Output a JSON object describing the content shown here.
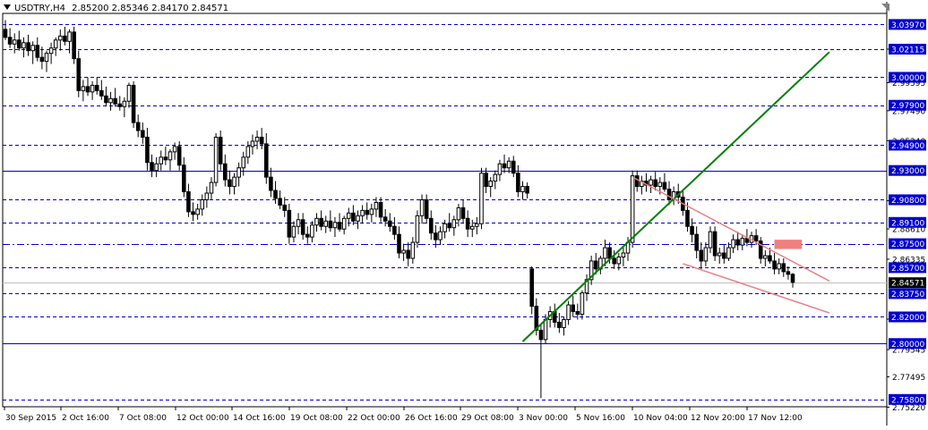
{
  "header": {
    "symbol": "USDTRY,H4",
    "ohlc": "2.85200 2.85346 2.84170 2.84571"
  },
  "colors": {
    "background": "#ffffff",
    "grid_line": "#0000cc",
    "candle": "#000000",
    "support_trendline": "#008000",
    "wedge_lines": "#e87f84",
    "marker_box": "#f08080",
    "price_label_bg": "#0000cc",
    "current_price_bg": "#000000"
  },
  "chart_data": {
    "type": "candlestick",
    "symbol": "USDTRY",
    "timeframe": "H4",
    "ylim": [
      2.7525,
      3.048
    ],
    "x_tick_labels": [
      "30 Sep 2015",
      "2 Oct 16:00",
      "7 Oct 08:00",
      "12 Oct 00:00",
      "14 Oct 16:00",
      "19 Oct 08:00",
      "22 Oct 00:00",
      "26 Oct 16:00",
      "29 Oct 08:00",
      "3 Nov 00:00",
      "5 Nov 16:00",
      "10 Nov 04:00",
      "12 Nov 20:00",
      "17 Nov 12:00"
    ],
    "y_tick_labels": [
      "3.02115",
      "2.99595",
      "2.97490",
      "2.95240",
      "2.90735",
      "2.88610",
      "2.86335",
      "2.81830",
      "2.79545",
      "2.77495",
      "2.75220"
    ],
    "horizontal_levels": [
      {
        "label": "3.03970",
        "value": 3.0397,
        "style": "dashed"
      },
      {
        "label": "3.02115",
        "value": 3.02115,
        "style": "dashed"
      },
      {
        "label": "3.00000",
        "value": 3.0,
        "style": "dashed"
      },
      {
        "label": "2.97900",
        "value": 2.979,
        "style": "dashed"
      },
      {
        "label": "2.94900",
        "value": 2.949,
        "style": "dashed"
      },
      {
        "label": "2.93000",
        "value": 2.93,
        "style": "solid"
      },
      {
        "label": "2.90800",
        "value": 2.908,
        "style": "dashed"
      },
      {
        "label": "2.89100",
        "value": 2.891,
        "style": "dashed"
      },
      {
        "label": "2.87500",
        "value": 2.875,
        "style": "dashdot"
      },
      {
        "label": "2.85700",
        "value": 2.857,
        "style": "dashed"
      },
      {
        "label": "2.83750",
        "value": 2.8375,
        "style": "dashed"
      },
      {
        "label": "2.82000",
        "value": 2.82,
        "style": "dashed"
      },
      {
        "label": "2.80000",
        "value": 2.8,
        "style": "solid"
      },
      {
        "label": "2.75800",
        "value": 2.758,
        "style": "dashed"
      }
    ],
    "current_price": {
      "label": "2.84571",
      "value": 2.84571
    },
    "candles": [
      {
        "o": 3.036,
        "h": 3.043,
        "l": 3.028,
        "c": 3.03
      },
      {
        "o": 3.03,
        "h": 3.037,
        "l": 3.022,
        "c": 3.025
      },
      {
        "o": 3.025,
        "h": 3.033,
        "l": 3.018,
        "c": 3.028
      },
      {
        "o": 3.028,
        "h": 3.035,
        "l": 3.02,
        "c": 3.022
      },
      {
        "o": 3.022,
        "h": 3.03,
        "l": 3.015,
        "c": 3.026
      },
      {
        "o": 3.026,
        "h": 3.032,
        "l": 3.016,
        "c": 3.02
      },
      {
        "o": 3.02,
        "h": 3.027,
        "l": 3.01,
        "c": 3.024
      },
      {
        "o": 3.024,
        "h": 3.03,
        "l": 3.012,
        "c": 3.015
      },
      {
        "o": 3.015,
        "h": 3.023,
        "l": 3.006,
        "c": 3.012
      },
      {
        "o": 3.012,
        "h": 3.02,
        "l": 3.004,
        "c": 3.018
      },
      {
        "o": 3.018,
        "h": 3.026,
        "l": 3.01,
        "c": 3.022
      },
      {
        "o": 3.022,
        "h": 3.03,
        "l": 3.016,
        "c": 3.028
      },
      {
        "o": 3.028,
        "h": 3.036,
        "l": 3.02,
        "c": 3.031
      },
      {
        "o": 3.031,
        "h": 3.038,
        "l": 3.024,
        "c": 3.027
      },
      {
        "o": 3.027,
        "h": 3.036,
        "l": 3.018,
        "c": 3.034
      },
      {
        "o": 3.034,
        "h": 3.038,
        "l": 3.01,
        "c": 3.014
      },
      {
        "o": 3.014,
        "h": 3.02,
        "l": 2.985,
        "c": 2.99
      },
      {
        "o": 2.99,
        "h": 2.998,
        "l": 2.982,
        "c": 2.993
      },
      {
        "o": 2.993,
        "h": 3.0,
        "l": 2.986,
        "c": 2.989
      },
      {
        "o": 2.989,
        "h": 2.997,
        "l": 2.983,
        "c": 2.994
      },
      {
        "o": 2.994,
        "h": 3.0,
        "l": 2.987,
        "c": 2.99
      },
      {
        "o": 2.99,
        "h": 2.998,
        "l": 2.983,
        "c": 2.986
      },
      {
        "o": 2.986,
        "h": 2.993,
        "l": 2.978,
        "c": 2.981
      },
      {
        "o": 2.981,
        "h": 2.989,
        "l": 2.975,
        "c": 2.984
      },
      {
        "o": 2.984,
        "h": 2.992,
        "l": 2.978,
        "c": 2.98
      },
      {
        "o": 2.98,
        "h": 2.986,
        "l": 2.975,
        "c": 2.978
      },
      {
        "o": 2.978,
        "h": 2.985,
        "l": 2.97,
        "c": 2.982
      },
      {
        "o": 2.982,
        "h": 2.996,
        "l": 2.977,
        "c": 2.994
      },
      {
        "o": 2.994,
        "h": 2.997,
        "l": 2.962,
        "c": 2.966
      },
      {
        "o": 2.966,
        "h": 2.972,
        "l": 2.955,
        "c": 2.96
      },
      {
        "o": 2.96,
        "h": 2.966,
        "l": 2.95,
        "c": 2.955
      },
      {
        "o": 2.955,
        "h": 2.962,
        "l": 2.93,
        "c": 2.936
      },
      {
        "o": 2.936,
        "h": 2.942,
        "l": 2.925,
        "c": 2.93
      },
      {
        "o": 2.93,
        "h": 2.94,
        "l": 2.925,
        "c": 2.935
      },
      {
        "o": 2.935,
        "h": 2.945,
        "l": 2.93,
        "c": 2.94
      },
      {
        "o": 2.94,
        "h": 2.948,
        "l": 2.934,
        "c": 2.938
      },
      {
        "o": 2.938,
        "h": 2.946,
        "l": 2.93,
        "c": 2.944
      },
      {
        "o": 2.944,
        "h": 2.951,
        "l": 2.938,
        "c": 2.948
      },
      {
        "o": 2.948,
        "h": 2.952,
        "l": 2.93,
        "c": 2.934
      },
      {
        "o": 2.934,
        "h": 2.94,
        "l": 2.91,
        "c": 2.914
      },
      {
        "o": 2.914,
        "h": 2.92,
        "l": 2.895,
        "c": 2.899
      },
      {
        "o": 2.899,
        "h": 2.906,
        "l": 2.892,
        "c": 2.897
      },
      {
        "o": 2.897,
        "h": 2.905,
        "l": 2.893,
        "c": 2.901
      },
      {
        "o": 2.901,
        "h": 2.912,
        "l": 2.896,
        "c": 2.908
      },
      {
        "o": 2.908,
        "h": 2.918,
        "l": 2.902,
        "c": 2.913
      },
      {
        "o": 2.913,
        "h": 2.925,
        "l": 2.908,
        "c": 2.921
      },
      {
        "o": 2.921,
        "h": 2.958,
        "l": 2.918,
        "c": 2.955
      },
      {
        "o": 2.955,
        "h": 2.96,
        "l": 2.93,
        "c": 2.935
      },
      {
        "o": 2.935,
        "h": 2.942,
        "l": 2.918,
        "c": 2.923
      },
      {
        "o": 2.923,
        "h": 2.93,
        "l": 2.912,
        "c": 2.918
      },
      {
        "o": 2.918,
        "h": 2.928,
        "l": 2.912,
        "c": 2.925
      },
      {
        "o": 2.925,
        "h": 2.936,
        "l": 2.918,
        "c": 2.932
      },
      {
        "o": 2.932,
        "h": 2.944,
        "l": 2.926,
        "c": 2.94
      },
      {
        "o": 2.94,
        "h": 2.952,
        "l": 2.935,
        "c": 2.948
      },
      {
        "o": 2.948,
        "h": 2.957,
        "l": 2.942,
        "c": 2.952
      },
      {
        "o": 2.952,
        "h": 2.96,
        "l": 2.946,
        "c": 2.955
      },
      {
        "o": 2.955,
        "h": 2.962,
        "l": 2.946,
        "c": 2.95
      },
      {
        "o": 2.95,
        "h": 2.958,
        "l": 2.92,
        "c": 2.925
      },
      {
        "o": 2.925,
        "h": 2.932,
        "l": 2.91,
        "c": 2.915
      },
      {
        "o": 2.915,
        "h": 2.922,
        "l": 2.905,
        "c": 2.909
      },
      {
        "o": 2.909,
        "h": 2.915,
        "l": 2.901,
        "c": 2.904
      },
      {
        "o": 2.904,
        "h": 2.91,
        "l": 2.895,
        "c": 2.9
      },
      {
        "o": 2.9,
        "h": 2.905,
        "l": 2.875,
        "c": 2.88
      },
      {
        "o": 2.88,
        "h": 2.892,
        "l": 2.876,
        "c": 2.888
      },
      {
        "o": 2.888,
        "h": 2.898,
        "l": 2.882,
        "c": 2.893
      },
      {
        "o": 2.893,
        "h": 2.898,
        "l": 2.878,
        "c": 2.882
      },
      {
        "o": 2.882,
        "h": 2.888,
        "l": 2.875,
        "c": 2.88
      },
      {
        "o": 2.88,
        "h": 2.892,
        "l": 2.876,
        "c": 2.889
      },
      {
        "o": 2.889,
        "h": 2.898,
        "l": 2.884,
        "c": 2.894
      },
      {
        "o": 2.894,
        "h": 2.9,
        "l": 2.885,
        "c": 2.888
      },
      {
        "o": 2.888,
        "h": 2.896,
        "l": 2.883,
        "c": 2.892
      },
      {
        "o": 2.892,
        "h": 2.9,
        "l": 2.884,
        "c": 2.887
      },
      {
        "o": 2.887,
        "h": 2.895,
        "l": 2.88,
        "c": 2.891
      },
      {
        "o": 2.891,
        "h": 2.898,
        "l": 2.884,
        "c": 2.886
      },
      {
        "o": 2.886,
        "h": 2.896,
        "l": 2.882,
        "c": 2.894
      },
      {
        "o": 2.894,
        "h": 2.902,
        "l": 2.888,
        "c": 2.898
      },
      {
        "o": 2.898,
        "h": 2.904,
        "l": 2.889,
        "c": 2.892
      },
      {
        "o": 2.892,
        "h": 2.9,
        "l": 2.886,
        "c": 2.896
      },
      {
        "o": 2.896,
        "h": 2.904,
        "l": 2.89,
        "c": 2.9
      },
      {
        "o": 2.9,
        "h": 2.906,
        "l": 2.893,
        "c": 2.897
      },
      {
        "o": 2.897,
        "h": 2.905,
        "l": 2.891,
        "c": 2.901
      },
      {
        "o": 2.901,
        "h": 2.91,
        "l": 2.895,
        "c": 2.906
      },
      {
        "o": 2.906,
        "h": 2.91,
        "l": 2.891,
        "c": 2.895
      },
      {
        "o": 2.895,
        "h": 2.901,
        "l": 2.888,
        "c": 2.892
      },
      {
        "o": 2.892,
        "h": 2.898,
        "l": 2.884,
        "c": 2.888
      },
      {
        "o": 2.888,
        "h": 2.895,
        "l": 2.878,
        "c": 2.882
      },
      {
        "o": 2.882,
        "h": 2.888,
        "l": 2.864,
        "c": 2.868
      },
      {
        "o": 2.868,
        "h": 2.875,
        "l": 2.862,
        "c": 2.87
      },
      {
        "o": 2.87,
        "h": 2.876,
        "l": 2.858,
        "c": 2.864
      },
      {
        "o": 2.864,
        "h": 2.88,
        "l": 2.86,
        "c": 2.876
      },
      {
        "o": 2.876,
        "h": 2.9,
        "l": 2.872,
        "c": 2.896
      },
      {
        "o": 2.896,
        "h": 2.912,
        "l": 2.89,
        "c": 2.908
      },
      {
        "o": 2.908,
        "h": 2.912,
        "l": 2.89,
        "c": 2.894
      },
      {
        "o": 2.894,
        "h": 2.9,
        "l": 2.878,
        "c": 2.883
      },
      {
        "o": 2.883,
        "h": 2.889,
        "l": 2.872,
        "c": 2.878
      },
      {
        "o": 2.878,
        "h": 2.888,
        "l": 2.874,
        "c": 2.884
      },
      {
        "o": 2.884,
        "h": 2.893,
        "l": 2.879,
        "c": 2.89
      },
      {
        "o": 2.89,
        "h": 2.898,
        "l": 2.884,
        "c": 2.887
      },
      {
        "o": 2.887,
        "h": 2.896,
        "l": 2.881,
        "c": 2.893
      },
      {
        "o": 2.893,
        "h": 2.905,
        "l": 2.888,
        "c": 2.902
      },
      {
        "o": 2.902,
        "h": 2.908,
        "l": 2.89,
        "c": 2.894
      },
      {
        "o": 2.894,
        "h": 2.9,
        "l": 2.88,
        "c": 2.886
      },
      {
        "o": 2.886,
        "h": 2.893,
        "l": 2.88,
        "c": 2.888
      },
      {
        "o": 2.888,
        "h": 2.895,
        "l": 2.882,
        "c": 2.89
      },
      {
        "o": 2.89,
        "h": 2.932,
        "l": 2.886,
        "c": 2.928
      },
      {
        "o": 2.928,
        "h": 2.932,
        "l": 2.913,
        "c": 2.918
      },
      {
        "o": 2.918,
        "h": 2.925,
        "l": 2.91,
        "c": 2.922
      },
      {
        "o": 2.922,
        "h": 2.93,
        "l": 2.916,
        "c": 2.927
      },
      {
        "o": 2.927,
        "h": 2.938,
        "l": 2.922,
        "c": 2.935
      },
      {
        "o": 2.935,
        "h": 2.942,
        "l": 2.928,
        "c": 2.932
      },
      {
        "o": 2.932,
        "h": 2.94,
        "l": 2.928,
        "c": 2.937
      },
      {
        "o": 2.937,
        "h": 2.941,
        "l": 2.925,
        "c": 2.928
      },
      {
        "o": 2.928,
        "h": 2.934,
        "l": 2.91,
        "c": 2.914
      },
      {
        "o": 2.914,
        "h": 2.922,
        "l": 2.908,
        "c": 2.918
      },
      {
        "o": 2.918,
        "h": 2.921,
        "l": 2.909,
        "c": 2.913
      },
      {
        "o": 2.856,
        "h": 2.858,
        "l": 2.822,
        "c": 2.828
      },
      {
        "o": 2.828,
        "h": 2.834,
        "l": 2.806,
        "c": 2.81
      },
      {
        "o": 2.81,
        "h": 2.814,
        "l": 2.759,
        "c": 2.803
      },
      {
        "o": 2.803,
        "h": 2.822,
        "l": 2.8,
        "c": 2.818
      },
      {
        "o": 2.818,
        "h": 2.828,
        "l": 2.812,
        "c": 2.824
      },
      {
        "o": 2.824,
        "h": 2.83,
        "l": 2.812,
        "c": 2.816
      },
      {
        "o": 2.816,
        "h": 2.823,
        "l": 2.808,
        "c": 2.812
      },
      {
        "o": 2.812,
        "h": 2.82,
        "l": 2.806,
        "c": 2.818
      },
      {
        "o": 2.818,
        "h": 2.832,
        "l": 2.814,
        "c": 2.829
      },
      {
        "o": 2.829,
        "h": 2.836,
        "l": 2.82,
        "c": 2.824
      },
      {
        "o": 2.824,
        "h": 2.83,
        "l": 2.818,
        "c": 2.822
      },
      {
        "o": 2.822,
        "h": 2.84,
        "l": 2.818,
        "c": 2.838
      },
      {
        "o": 2.838,
        "h": 2.852,
        "l": 2.832,
        "c": 2.848
      },
      {
        "o": 2.848,
        "h": 2.866,
        "l": 2.844,
        "c": 2.862
      },
      {
        "o": 2.862,
        "h": 2.868,
        "l": 2.852,
        "c": 2.856
      },
      {
        "o": 2.856,
        "h": 2.866,
        "l": 2.852,
        "c": 2.864
      },
      {
        "o": 2.864,
        "h": 2.878,
        "l": 2.858,
        "c": 2.872
      },
      {
        "o": 2.872,
        "h": 2.876,
        "l": 2.86,
        "c": 2.864
      },
      {
        "o": 2.864,
        "h": 2.87,
        "l": 2.856,
        "c": 2.86
      },
      {
        "o": 2.86,
        "h": 2.868,
        "l": 2.855,
        "c": 2.865
      },
      {
        "o": 2.865,
        "h": 2.872,
        "l": 2.858,
        "c": 2.868
      },
      {
        "o": 2.868,
        "h": 2.88,
        "l": 2.862,
        "c": 2.876
      },
      {
        "o": 2.876,
        "h": 2.93,
        "l": 2.872,
        "c": 2.926
      },
      {
        "o": 2.926,
        "h": 2.93,
        "l": 2.914,
        "c": 2.918
      },
      {
        "o": 2.918,
        "h": 2.926,
        "l": 2.912,
        "c": 2.922
      },
      {
        "o": 2.922,
        "h": 2.928,
        "l": 2.914,
        "c": 2.919
      },
      {
        "o": 2.919,
        "h": 2.926,
        "l": 2.913,
        "c": 2.923
      },
      {
        "o": 2.923,
        "h": 2.929,
        "l": 2.915,
        "c": 2.918
      },
      {
        "o": 2.918,
        "h": 2.925,
        "l": 2.912,
        "c": 2.921
      },
      {
        "o": 2.921,
        "h": 2.928,
        "l": 2.914,
        "c": 2.916
      },
      {
        "o": 2.916,
        "h": 2.922,
        "l": 2.904,
        "c": 2.908
      },
      {
        "o": 2.908,
        "h": 2.918,
        "l": 2.904,
        "c": 2.914
      },
      {
        "o": 2.914,
        "h": 2.92,
        "l": 2.905,
        "c": 2.91
      },
      {
        "o": 2.91,
        "h": 2.916,
        "l": 2.896,
        "c": 2.9
      },
      {
        "o": 2.9,
        "h": 2.906,
        "l": 2.884,
        "c": 2.888
      },
      {
        "o": 2.888,
        "h": 2.894,
        "l": 2.876,
        "c": 2.882
      },
      {
        "o": 2.882,
        "h": 2.888,
        "l": 2.864,
        "c": 2.87
      },
      {
        "o": 2.87,
        "h": 2.876,
        "l": 2.856,
        "c": 2.862
      },
      {
        "o": 2.862,
        "h": 2.876,
        "l": 2.858,
        "c": 2.872
      },
      {
        "o": 2.872,
        "h": 2.888,
        "l": 2.868,
        "c": 2.884
      },
      {
        "o": 2.884,
        "h": 2.888,
        "l": 2.862,
        "c": 2.866
      },
      {
        "o": 2.866,
        "h": 2.872,
        "l": 2.86,
        "c": 2.868
      },
      {
        "o": 2.868,
        "h": 2.874,
        "l": 2.86,
        "c": 2.864
      },
      {
        "o": 2.864,
        "h": 2.876,
        "l": 2.862,
        "c": 2.872
      },
      {
        "o": 2.872,
        "h": 2.882,
        "l": 2.868,
        "c": 2.878
      },
      {
        "o": 2.878,
        "h": 2.884,
        "l": 2.87,
        "c": 2.874
      },
      {
        "o": 2.874,
        "h": 2.882,
        "l": 2.87,
        "c": 2.879
      },
      {
        "o": 2.879,
        "h": 2.886,
        "l": 2.873,
        "c": 2.876
      },
      {
        "o": 2.876,
        "h": 2.884,
        "l": 2.872,
        "c": 2.881
      },
      {
        "o": 2.881,
        "h": 2.886,
        "l": 2.874,
        "c": 2.877
      },
      {
        "o": 2.877,
        "h": 2.88,
        "l": 2.86,
        "c": 2.864
      },
      {
        "o": 2.864,
        "h": 2.87,
        "l": 2.858,
        "c": 2.866
      },
      {
        "o": 2.866,
        "h": 2.872,
        "l": 2.86,
        "c": 2.862
      },
      {
        "o": 2.862,
        "h": 2.868,
        "l": 2.852,
        "c": 2.856
      },
      {
        "o": 2.856,
        "h": 2.864,
        "l": 2.852,
        "c": 2.86
      },
      {
        "o": 2.86,
        "h": 2.864,
        "l": 2.85,
        "c": 2.854
      },
      {
        "o": 2.854,
        "h": 2.858,
        "l": 2.848,
        "c": 2.852
      },
      {
        "o": 2.852,
        "h": 2.853,
        "l": 2.842,
        "c": 2.846
      }
    ],
    "trendlines": [
      {
        "name": "",
        "color": "#008000",
        "start": {
          "candle": 113,
          "price": 2.8015
        },
        "end": {
          "candle": 180,
          "price": 3.019
        }
      },
      {
        "name": "",
        "color": "#e87f84",
        "start": {
          "candle": 137,
          "price": 2.925
        },
        "end": {
          "candle": 180,
          "price": 2.847
        }
      },
      {
        "name": "",
        "color": "#e87f84",
        "start": {
          "candle": 148,
          "price": 2.86
        },
        "end": {
          "candle": 180,
          "price": 2.823
        }
      }
    ],
    "marker_box": {
      "from_candle": 168,
      "to_candle": 174,
      "price_low": 2.871,
      "price_high": 2.878
    }
  }
}
